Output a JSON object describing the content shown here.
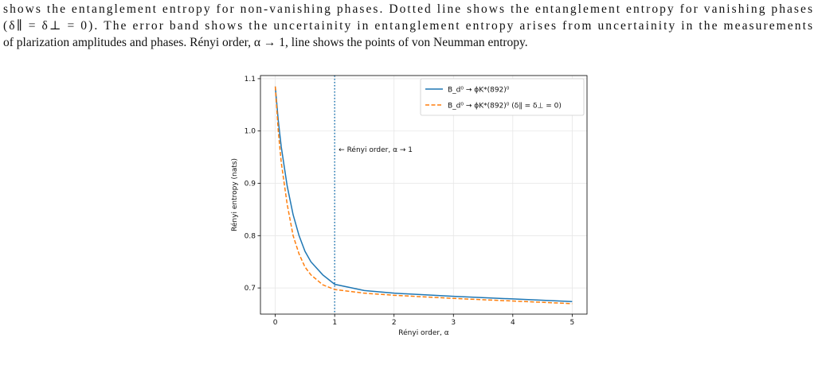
{
  "text": {
    "lines": [
      "shows the entanglement entropy for non-vanishing phases. Dotted line shows the entanglement entropy for vanishing phases",
      "(δ∥ = δ⊥ = 0). The error band shows the uncertainity in entanglement entropy arises from uncertainity in the measurements",
      "of plarization amplitudes and phases. Rényi order, α → 1, line shows the points of von Neumman entropy."
    ]
  },
  "chart_data": {
    "type": "line",
    "x_label": "Rényi order, α",
    "y_label": "Rényi entropy (nats)",
    "x": [
      0,
      0.05,
      0.1,
      0.2,
      0.3,
      0.4,
      0.5,
      0.6,
      0.8,
      1,
      1.5,
      2,
      3,
      4,
      5
    ],
    "series": [
      {
        "name": "B_d⁰ → ϕK*(892)⁰",
        "color": "#1f77b4",
        "dash": "solid",
        "values": [
          1.085,
          1.02,
          0.97,
          0.895,
          0.84,
          0.8,
          0.77,
          0.75,
          0.725,
          0.707,
          0.695,
          0.69,
          0.684,
          0.679,
          0.674
        ]
      },
      {
        "name": "B_d⁰ → ϕK*(892)⁰ (δ∥ = δ⊥ = 0)",
        "color": "#ff7f0e",
        "dash": "dashed",
        "values": [
          1.085,
          1.0,
          0.94,
          0.86,
          0.8,
          0.765,
          0.74,
          0.725,
          0.706,
          0.697,
          0.69,
          0.686,
          0.68,
          0.675,
          0.67
        ]
      }
    ],
    "vline": {
      "x": 1,
      "color": "#1f77b4",
      "label": "← Rényi order, α → 1"
    },
    "xlim": [
      -0.25,
      5.25
    ],
    "ylim": [
      0.65,
      1.106
    ],
    "xticks": [
      0,
      1,
      2,
      3,
      4,
      5
    ],
    "yticks": [
      0.7,
      0.8,
      0.9,
      {
        "value": 1,
        "label": "1.0"
      },
      1.1
    ],
    "grid": true,
    "legend": "upper right"
  }
}
